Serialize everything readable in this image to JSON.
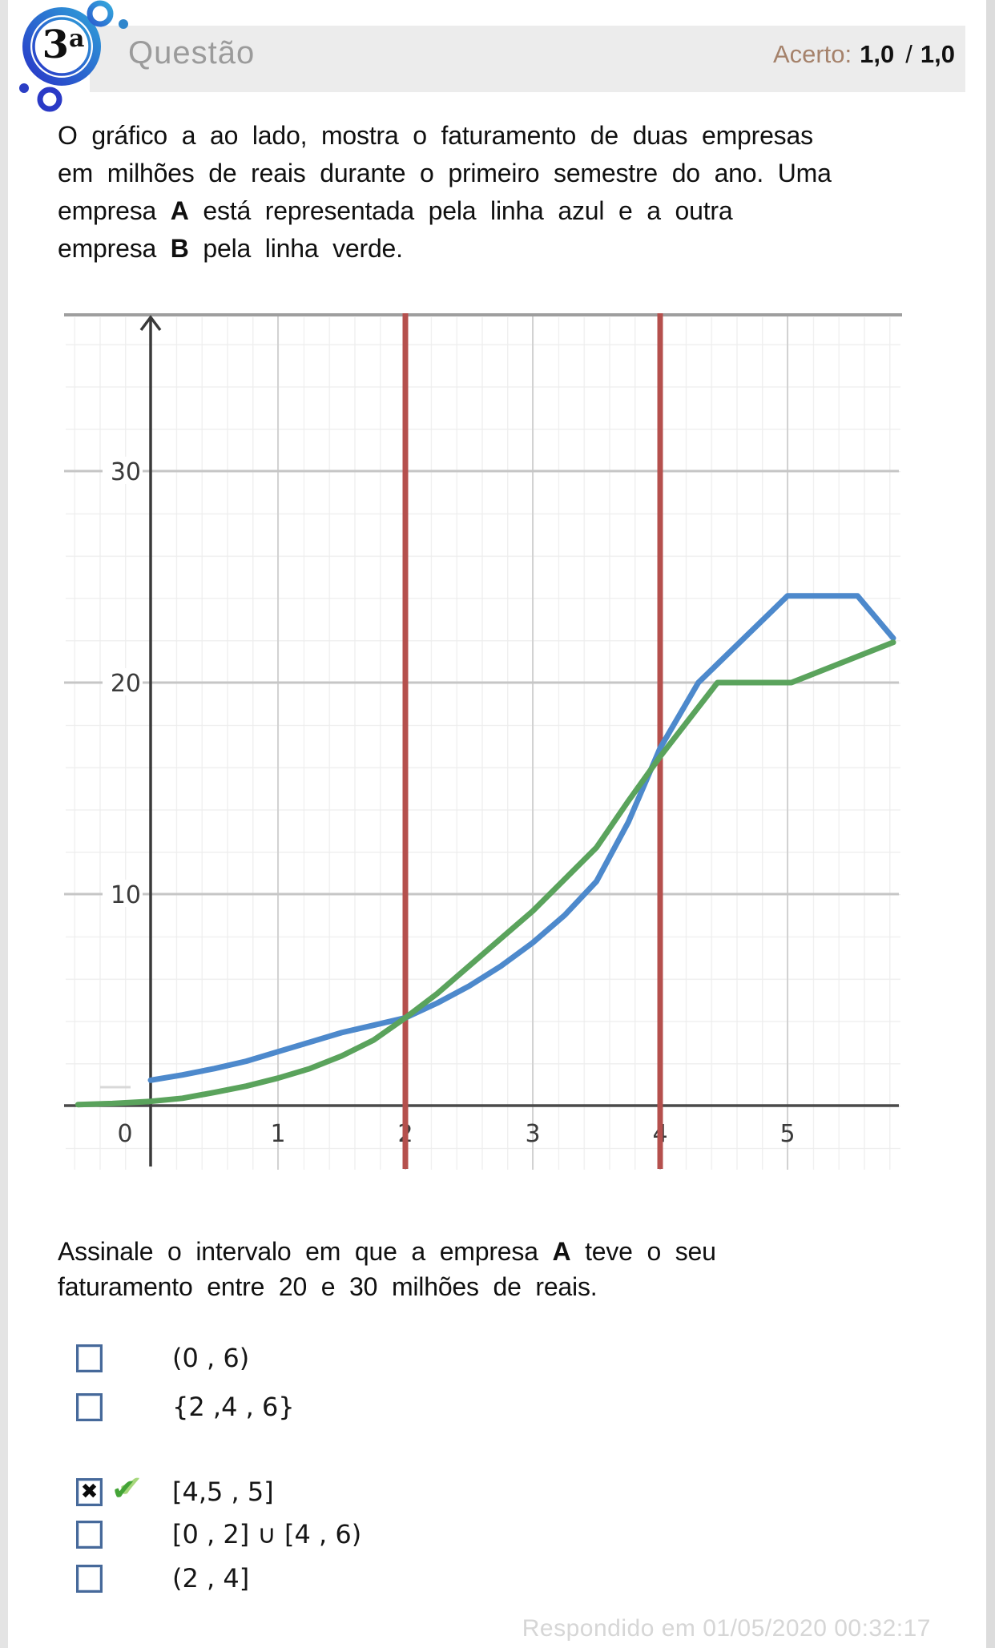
{
  "header": {
    "badge_number": "3",
    "badge_ordinal": "a",
    "title": "Questão",
    "score_label": "Acerto:",
    "score_value": "1,0",
    "score_divider": "/",
    "score_total": "1,0"
  },
  "question": {
    "intro": {
      "line1": "O gráfico a ao lado, mostra o faturamento de duas empresas",
      "line2": "em milhões de reais durante o primeiro semestre do ano. Uma",
      "line3_pre": "empresa ",
      "line3_bold": "A",
      "line3_post": " está representada pela linha azul e a outra",
      "line4_pre": "empresa ",
      "line4_bold": "B",
      "line4_post": " pela linha verde."
    },
    "prompt": {
      "line1_pre": "Assinale o intervalo em que a empresa ",
      "line1_bold": "A",
      "line1_post": " teve o seu",
      "line2": "faturamento entre 20 e 30 milhões de reais."
    }
  },
  "chart_data": {
    "type": "line",
    "title": "",
    "xlabel": "",
    "ylabel": "",
    "xlim": [
      -0.68,
      5.9
    ],
    "ylim": [
      0,
      37.3
    ],
    "grid": true,
    "x_tick_labels": [
      "0",
      "1",
      "2",
      "3",
      "4",
      "5"
    ],
    "y_tick_labels": [
      "30",
      "20",
      "10"
    ],
    "vertical_marker_lines_x": [
      2,
      4
    ],
    "marker_color": "#b5504d",
    "series": [
      {
        "name": "Empresa A (linha azul)",
        "color": "#4d89cc",
        "points": [
          [
            0,
            1.2
          ],
          [
            0.25,
            1.45
          ],
          [
            0.5,
            1.75
          ],
          [
            0.75,
            2.1
          ],
          [
            1,
            2.55
          ],
          [
            1.25,
            3.0
          ],
          [
            1.5,
            3.45
          ],
          [
            1.75,
            3.8
          ],
          [
            2,
            4.15
          ],
          [
            2.25,
            4.85
          ],
          [
            2.5,
            5.65
          ],
          [
            2.75,
            6.6
          ],
          [
            3,
            7.7
          ],
          [
            3.25,
            9.0
          ],
          [
            3.5,
            10.6
          ],
          [
            3.75,
            13.4
          ],
          [
            4,
            16.9
          ],
          [
            4.3,
            20
          ],
          [
            5.0,
            24.1
          ],
          [
            5.55,
            24.1
          ],
          [
            5.83,
            22.1
          ]
        ]
      },
      {
        "name": "Empresa B (linha verde)",
        "color": "#5aa35c",
        "points": [
          [
            -0.57,
            0.05
          ],
          [
            -0.3,
            0.1
          ],
          [
            0,
            0.2
          ],
          [
            0.25,
            0.35
          ],
          [
            0.5,
            0.62
          ],
          [
            0.75,
            0.92
          ],
          [
            1,
            1.3
          ],
          [
            1.25,
            1.75
          ],
          [
            1.5,
            2.35
          ],
          [
            1.75,
            3.1
          ],
          [
            2,
            4.15
          ],
          [
            2.25,
            5.3
          ],
          [
            2.5,
            6.6
          ],
          [
            2.75,
            7.9
          ],
          [
            3,
            9.2
          ],
          [
            3.25,
            10.7
          ],
          [
            3.5,
            12.2
          ],
          [
            3.75,
            14.4
          ],
          [
            4,
            16.5
          ],
          [
            4.45,
            20
          ],
          [
            5.03,
            20
          ],
          [
            5.83,
            21.9
          ]
        ]
      }
    ]
  },
  "options": [
    {
      "label": "(0 , 6)",
      "checked": false,
      "correct": false
    },
    {
      "label": "{2 ,4 , 6}",
      "checked": false,
      "correct": false
    },
    {
      "label": "[4,5 , 5]",
      "checked": true,
      "correct": true
    },
    {
      "label": "[0 , 2] ∪ [4 , 6)",
      "checked": false,
      "correct": false
    },
    {
      "label": "(2 , 4]",
      "checked": false,
      "correct": false
    }
  ],
  "icons": {
    "selected_mark": "✖",
    "correct_mark": "✔"
  },
  "colors": {
    "checkbox_border": "#46699a",
    "correct_check_green": "#44a437",
    "header_bar": "#ececec",
    "badge_blue_dark": "#2837c8",
    "badge_blue_light": "#2f9fd8"
  },
  "footer": {
    "answered_at": "Respondido em 01/05/2020 00:32:17"
  }
}
